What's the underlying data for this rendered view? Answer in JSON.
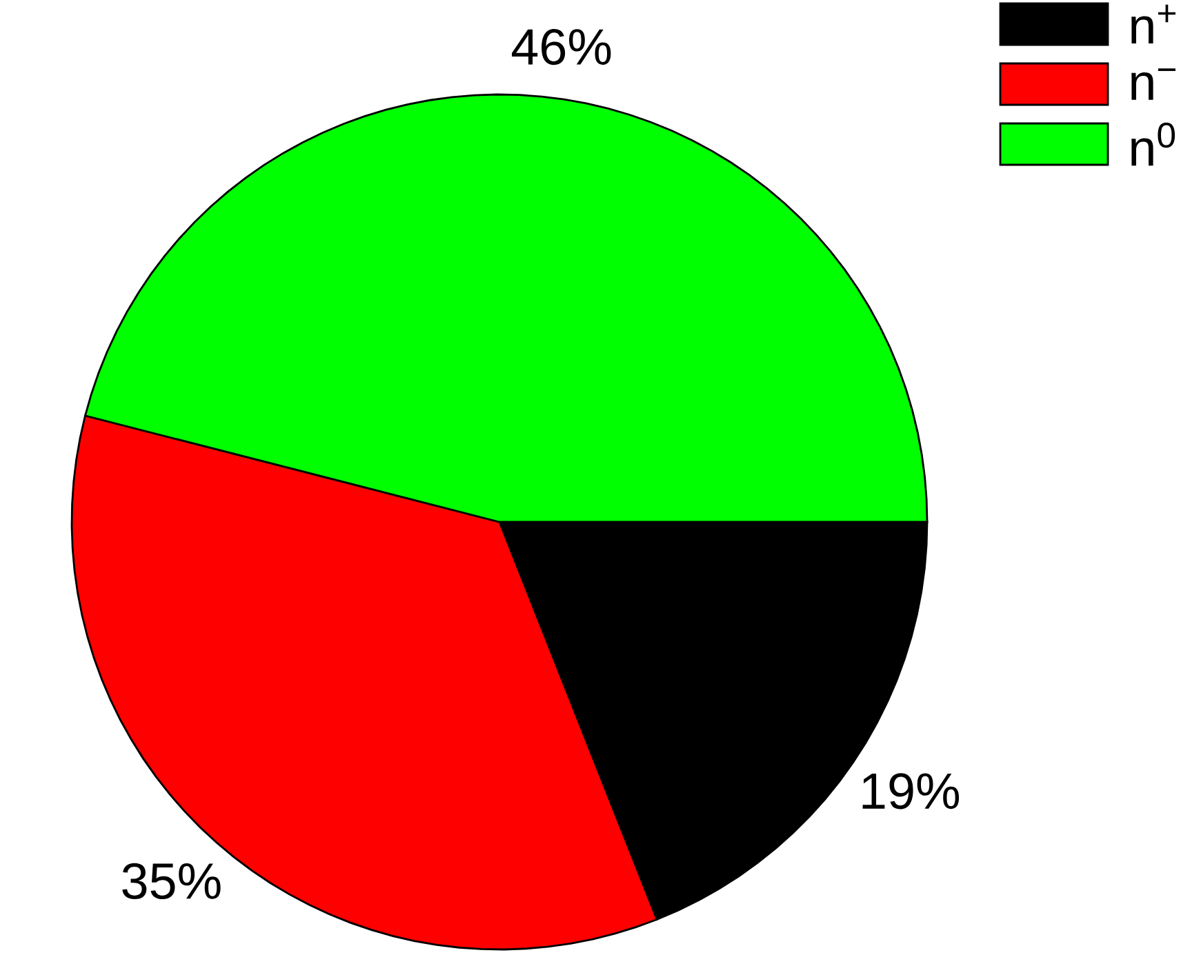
{
  "chart_data": {
    "type": "pie",
    "categories": [
      "n$^{+}$",
      "n$^{−}$",
      "n$^{0}$"
    ],
    "values": [
      19,
      35,
      46
    ],
    "colors": [
      "#000000",
      "#ff0000",
      "#00ff00"
    ],
    "value_labels": [
      "19%",
      "35%",
      "46%"
    ],
    "legend": "top right"
  }
}
